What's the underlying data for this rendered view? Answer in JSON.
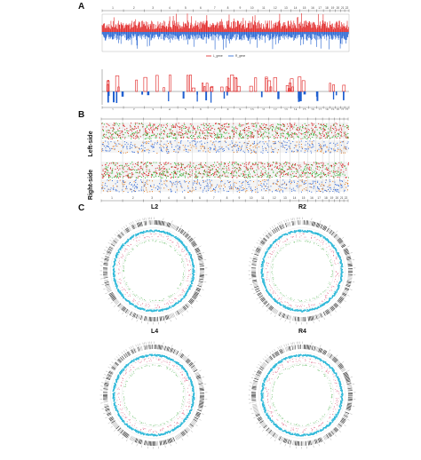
{
  "panels": {
    "a": {
      "letter": "A",
      "chromosomes": [
        "1",
        "2",
        "3",
        "4",
        "5",
        "6",
        "7",
        "8",
        "9",
        "10",
        "11",
        "12",
        "13",
        "14",
        "15",
        "16",
        "17",
        "18",
        "19",
        "20",
        "21",
        "22"
      ],
      "legend": [
        "L_gene",
        "R_gene"
      ],
      "colors": {
        "left": "#e02020",
        "right": "#1f5fd0"
      }
    },
    "b": {
      "letter": "B",
      "chromosomes": [
        "1",
        "2",
        "3",
        "4",
        "5",
        "6",
        "7",
        "8",
        "9",
        "10",
        "11",
        "12",
        "13",
        "14",
        "15",
        "16",
        "17",
        "18",
        "19",
        "20",
        "21",
        "22"
      ],
      "sides": [
        "Left-side",
        "Right-side"
      ],
      "colors": {
        "red": "#d62020",
        "green": "#2fb32f",
        "blue": "#3a6fd8",
        "orange": "#e07a20"
      }
    },
    "c": {
      "letter": "C",
      "circos": [
        {
          "label": "L2"
        },
        {
          "label": "R2"
        },
        {
          "label": "L4"
        },
        {
          "label": "R4"
        }
      ],
      "colors": {
        "ideogram": "#333333",
        "cyan": "#2fb8d8",
        "pink": "#e07090",
        "green": "#6dbf6d"
      }
    }
  }
}
